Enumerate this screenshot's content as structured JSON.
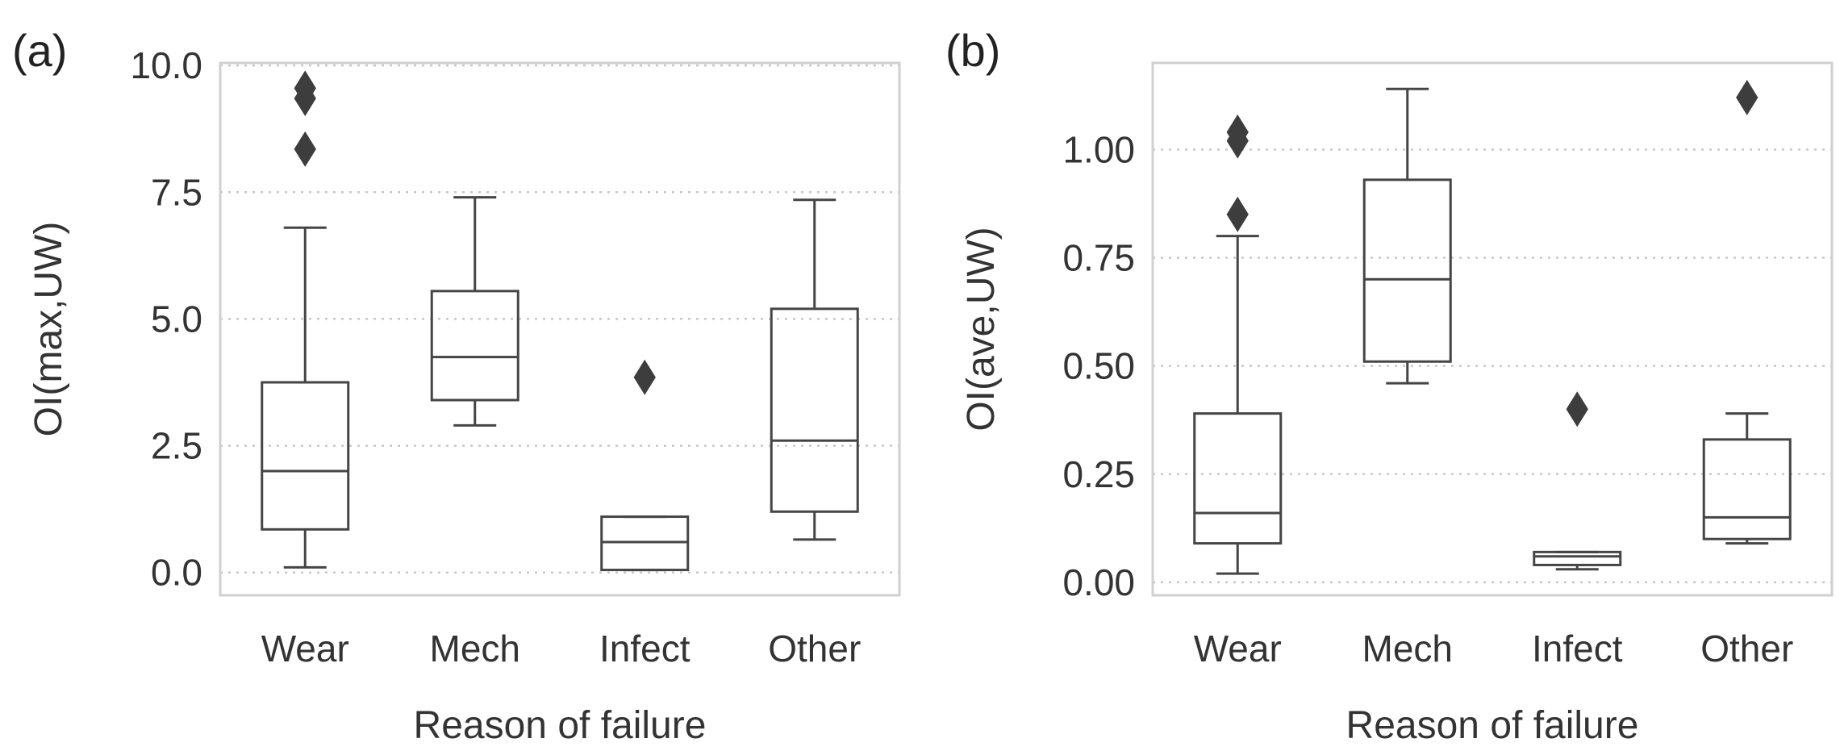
{
  "colors": {
    "Wear": "#e2e200",
    "Mech": "#ff1c1c",
    "Infect": "#2b86b8",
    "Other": "#808080",
    "outline": "#454545",
    "flier": "#3d3d3d"
  },
  "chart_data": [
    {
      "type": "box",
      "panel_label": "(a)",
      "title": "",
      "xlabel": "Reason of failure",
      "ylabel": "OI(max,UW)",
      "categories": [
        "Wear",
        "Mech",
        "Infect",
        "Other"
      ],
      "ylim": [
        -0.45,
        10.05
      ],
      "yticks": [
        0.0,
        2.5,
        5.0,
        7.5,
        10.0
      ],
      "ytick_labels": [
        "0.0",
        "2.5",
        "5.0",
        "7.5",
        "10.0"
      ],
      "grid": true,
      "boxes": [
        {
          "category": "Wear",
          "whisker_low": 0.1,
          "q1": 0.85,
          "median": 2.0,
          "q3": 3.75,
          "whisker_high": 6.8,
          "fliers": [
            8.35,
            9.35,
            9.55
          ]
        },
        {
          "category": "Mech",
          "whisker_low": 2.9,
          "q1": 3.4,
          "median": 4.25,
          "q3": 5.55,
          "whisker_high": 7.4,
          "fliers": []
        },
        {
          "category": "Infect",
          "whisker_low": 0.05,
          "q1": 0.05,
          "median": 0.6,
          "q3": 1.1,
          "whisker_high": 1.1,
          "fliers": [
            3.85
          ]
        },
        {
          "category": "Other",
          "whisker_low": 0.65,
          "q1": 1.2,
          "median": 2.6,
          "q3": 5.2,
          "whisker_high": 7.35,
          "fliers": []
        }
      ]
    },
    {
      "type": "box",
      "panel_label": "(b)",
      "title": "",
      "xlabel": "Reason of failure",
      "ylabel": "OI(ave,UW)",
      "categories": [
        "Wear",
        "Mech",
        "Infect",
        "Other"
      ],
      "ylim": [
        -0.03,
        1.2
      ],
      "yticks": [
        0.0,
        0.25,
        0.5,
        0.75,
        1.0
      ],
      "ytick_labels": [
        "0.00",
        "0.25",
        "0.50",
        "0.75",
        "1.00"
      ],
      "grid": true,
      "boxes": [
        {
          "category": "Wear",
          "whisker_low": 0.02,
          "q1": 0.09,
          "median": 0.16,
          "q3": 0.39,
          "whisker_high": 0.8,
          "fliers": [
            0.85,
            1.02,
            1.04
          ]
        },
        {
          "category": "Mech",
          "whisker_low": 0.46,
          "q1": 0.51,
          "median": 0.7,
          "q3": 0.93,
          "whisker_high": 1.14,
          "fliers": []
        },
        {
          "category": "Infect",
          "whisker_low": 0.03,
          "q1": 0.04,
          "median": 0.06,
          "q3": 0.07,
          "whisker_high": 0.07,
          "fliers": [
            0.4
          ]
        },
        {
          "category": "Other",
          "whisker_low": 0.09,
          "q1": 0.1,
          "median": 0.15,
          "q3": 0.33,
          "whisker_high": 0.39,
          "fliers": [
            1.12
          ]
        }
      ]
    }
  ]
}
